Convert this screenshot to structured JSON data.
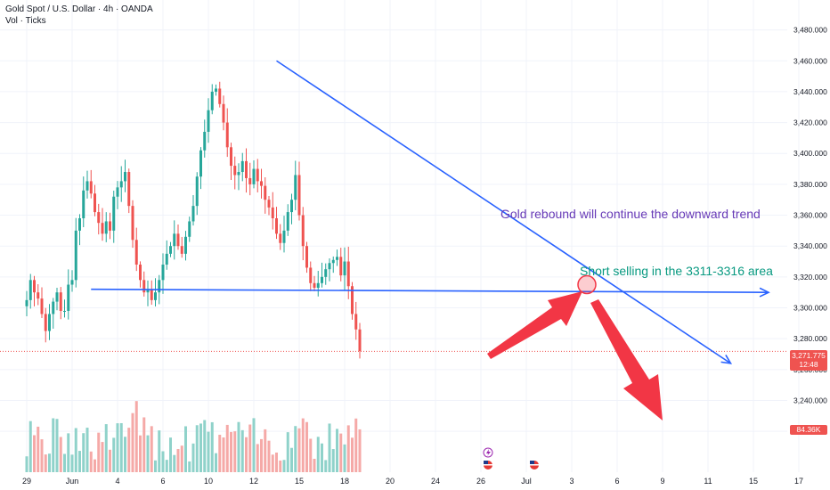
{
  "header": {
    "symbol": "Gold Spot / U.S. Dollar · 4h · OANDA",
    "indicator": "Vol · Ticks"
  },
  "colors": {
    "up": "#26a69a",
    "down": "#ef5350",
    "vol_up": "#8fd2ca",
    "vol_down": "#f5a9a7",
    "trendline": "#2962ff",
    "arrow": "#f23645",
    "annotation_purple": "#673ab7",
    "annotation_green": "#089981"
  },
  "annotations": {
    "rebound": "Gold rebound will continue the downward trend",
    "short": "Short selling in the 3311-3316 area"
  },
  "price_tag": {
    "value": "3,271.775",
    "countdown": "12:48"
  },
  "volume_tag": "84.36K",
  "icons": [
    "lightning-icon",
    "us-flag-icon",
    "us-flag-icon"
  ],
  "chart_data": {
    "type": "candlestick",
    "title": "Gold Spot / U.S. Dollar · 4h · OANDA",
    "timeframe": "4h",
    "y_axis": {
      "ticks": [
        3220,
        3240,
        3260,
        3280,
        3300,
        3320,
        3340,
        3360,
        3380,
        3400,
        3420,
        3440,
        3460,
        3480
      ],
      "tick_labels": [
        "3,220.000",
        "3,240.000",
        "3,260.000",
        "3,280.000",
        "3,300.000",
        "3,320.000",
        "3,340.000",
        "3,360.000",
        "3,380.000",
        "3,400.000",
        "3,420.000",
        "3,440.000",
        "3,460.000",
        "3,480.000"
      ],
      "range": [
        3212,
        3489
      ]
    },
    "x_axis": {
      "labels": [
        "29",
        "Jun",
        "4",
        "6",
        "10",
        "12",
        "15",
        "18",
        "20",
        "24",
        "26",
        "Jul",
        "3",
        "6",
        "9",
        "11",
        "15",
        "17"
      ],
      "positions": [
        0,
        12,
        24,
        36,
        48,
        60,
        72,
        84,
        96,
        108,
        120,
        132,
        144,
        156,
        168,
        180,
        192,
        204
      ]
    },
    "closes": [
      3305,
      3318,
      3310,
      3306,
      3296,
      3285,
      3296,
      3304,
      3310,
      3298,
      3298,
      3315,
      3318,
      3350,
      3358,
      3376,
      3382,
      3374,
      3362,
      3355,
      3348,
      3356,
      3350,
      3372,
      3378,
      3382,
      3388,
      3366,
      3344,
      3328,
      3318,
      3310,
      3312,
      3305,
      3310,
      3318,
      3328,
      3335,
      3340,
      3348,
      3340,
      3335,
      3346,
      3356,
      3366,
      3385,
      3402,
      3414,
      3428,
      3440,
      3442,
      3432,
      3420,
      3404,
      3392,
      3386,
      3388,
      3395,
      3384,
      3380,
      3390,
      3382,
      3379,
      3370,
      3365,
      3358,
      3348,
      3342,
      3350,
      3362,
      3370,
      3386,
      3360,
      3340,
      3326,
      3316,
      3313,
      3316,
      3320,
      3325,
      3329,
      3331,
      3333,
      3321,
      3330,
      3314,
      3296,
      3286,
      3272
    ],
    "candle_index_range": [
      0,
      88
    ],
    "current_price": 3271.775,
    "series": [
      {
        "name": "Vol · Ticks",
        "type": "bar",
        "last_value": "84.36K"
      }
    ],
    "annotations": [
      {
        "text": "Gold rebound will continue the downward trend"
      },
      {
        "text": "Short selling in the 3311-3316 area",
        "zone": [
          3311,
          3316
        ]
      }
    ],
    "trendlines": [
      {
        "name": "descending-trendline",
        "from": {
          "x": 66,
          "y": 3460
        },
        "to": {
          "x": 186,
          "y": 3264
        }
      },
      {
        "name": "horizontal-support",
        "from": {
          "x": 17,
          "y": 3312
        },
        "to": {
          "x": 196,
          "y": 3310
        }
      }
    ]
  }
}
